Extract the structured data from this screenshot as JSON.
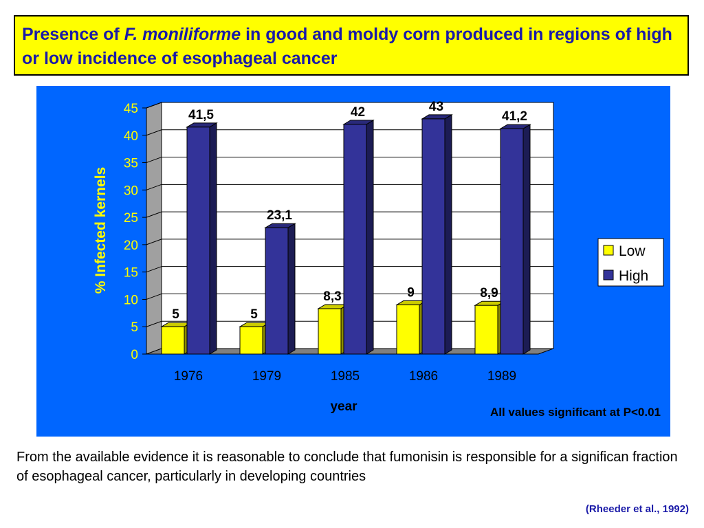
{
  "slide": {
    "title_part1": "Presence of ",
    "title_italic": "F. moniliforme",
    "title_part2": " in good and moldy corn produced in regions of  high or low incidence of esophageal cancer",
    "body": "From the available evidence it is reasonable to conclude that fumonisin is responsible for a significan fraction of esophageal cancer, particularly in developing countries",
    "citation": "(Rheeder et al., 1992)"
  },
  "colors": {
    "title_bg": "#ffff00",
    "title_text": "#1a1aa8",
    "panel_bg": "#0066ff",
    "low": "#ffff00",
    "high": "#333399",
    "ylabel": "#ffff00"
  },
  "chart_data": {
    "type": "bar",
    "categories": [
      "1976",
      "1979",
      "1985",
      "1986",
      "1989"
    ],
    "series": [
      {
        "name": "Low",
        "values": [
          5,
          5,
          8.3,
          9,
          8.9
        ]
      },
      {
        "name": "High",
        "values": [
          41.5,
          23.1,
          42,
          43,
          41.2
        ]
      }
    ],
    "data_labels": {
      "Low": [
        "5",
        "5",
        "8,3",
        "9",
        "8,9"
      ],
      "High": [
        "41,5",
        "23,1",
        "42",
        "43",
        "41,2"
      ]
    },
    "xlabel": "year",
    "ylabel": "% Infected kernels",
    "ylim": [
      0,
      45
    ],
    "yticks": [
      0,
      5,
      10,
      15,
      20,
      25,
      30,
      35,
      40,
      45
    ],
    "grid": true,
    "legend": "right",
    "annotation": "All values significant at P<0.01",
    "style": "3d-column"
  }
}
